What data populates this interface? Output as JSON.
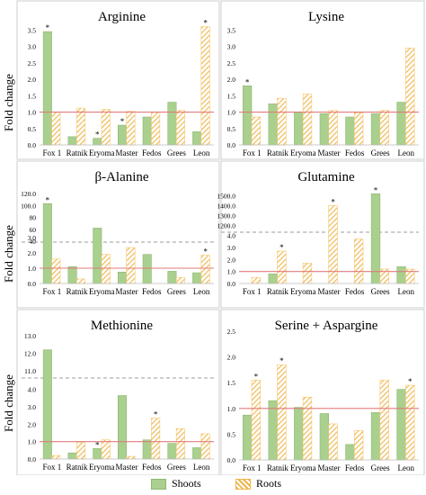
{
  "y_axis_label": "Fold change",
  "legend": [
    {
      "label": "Shoots",
      "color": "#a9d08e"
    },
    {
      "label": "Roots",
      "color": "#f6c56b"
    }
  ],
  "colors": {
    "shoots_fill": "#a9d08e",
    "shoots_stroke": "#8fb873",
    "roots_fill": "#f6c56b",
    "roots_hatch": "#f6c56b",
    "reference_line": "#e07b7b",
    "break_line": "#9e9e9e"
  },
  "chart_data": [
    {
      "type": "bar",
      "title": "Arginine",
      "categories": [
        "Fox 1",
        "Ratnik",
        "Eryoma",
        "Master",
        "Fedos",
        "Grees",
        "Leon"
      ],
      "series": [
        {
          "name": "Shoots",
          "values": [
            3.45,
            0.25,
            0.2,
            0.6,
            0.85,
            1.3,
            0.4
          ]
        },
        {
          "name": "Roots",
          "values": [
            1.0,
            1.12,
            1.08,
            1.02,
            1.0,
            1.05,
            3.6
          ]
        }
      ],
      "significance": {
        "Shoots": [
          0,
          2,
          3
        ],
        "Roots": [
          6
        ]
      },
      "yticks": [
        "0.0",
        "0.5",
        "1.0",
        "1.5",
        "2.0",
        "2.5",
        "3.0",
        "3.5"
      ],
      "ylim": [
        0,
        3.7
      ],
      "reference_line": 1.0
    },
    {
      "type": "bar",
      "title": "Lysine",
      "categories": [
        "Fox 1",
        "Ratnik",
        "Eryoma",
        "Master",
        "Fedos",
        "Grees",
        "Leon"
      ],
      "series": [
        {
          "name": "Shoots",
          "values": [
            1.8,
            1.25,
            1.0,
            0.95,
            0.85,
            0.95,
            1.3
          ]
        },
        {
          "name": "Roots",
          "values": [
            0.85,
            1.42,
            1.55,
            1.05,
            0.98,
            1.05,
            2.95
          ]
        }
      ],
      "significance": {
        "Shoots": [
          0
        ],
        "Roots": []
      },
      "yticks": [
        "0.0",
        "0.5",
        "1.0",
        "1.5",
        "2.0",
        "2.5",
        "3.0",
        "3.5"
      ],
      "ylim": [
        0,
        3.7
      ],
      "reference_line": 1.0
    },
    {
      "type": "bar",
      "title": "β-Alanine",
      "categories": [
        "Fox 1",
        "Ratnik",
        "Eryoma",
        "Master",
        "Fedos",
        "Grees",
        "Leon"
      ],
      "series": [
        {
          "name": "Shoots",
          "values": [
            103,
            1.1,
            62,
            0.75,
            1.9,
            0.8,
            0.7
          ]
        },
        {
          "name": "Roots",
          "values": [
            1.6,
            0.3,
            1.9,
            2.35,
            null,
            0.4,
            1.85
          ]
        }
      ],
      "significance": {
        "Shoots": [
          0
        ],
        "Roots": [
          6
        ]
      },
      "yticks": [
        "0.0",
        "1.0",
        "2.0",
        "3.0",
        "40",
        "60",
        "80",
        "100.0",
        "120.0"
      ],
      "axis_break": true,
      "reference_line": 1.0
    },
    {
      "type": "bar",
      "title": "Glutamine",
      "categories": [
        "Fox 1",
        "Ratnik",
        "Eryoma",
        "Master",
        "Fedos",
        "Grees",
        "Leon"
      ],
      "series": [
        {
          "name": "Shoots",
          "values": [
            null,
            0.8,
            null,
            null,
            null,
            1520,
            1.4
          ]
        },
        {
          "name": "Roots",
          "values": [
            0.5,
            2.7,
            1.7,
            1400,
            3.7,
            1.2,
            1.2
          ]
        }
      ],
      "significance": {
        "Shoots": [
          5
        ],
        "Roots": [
          1,
          3
        ]
      },
      "yticks": [
        "0.0",
        "1.0",
        "2.0",
        "3.0",
        "4.0",
        "1200.0",
        "1300.0",
        "1400.0",
        "1500.0"
      ],
      "axis_break": true,
      "reference_line": 1.0
    },
    {
      "type": "bar",
      "title": "Methionine",
      "categories": [
        "Fox 1",
        "Ratnik",
        "Eryoma",
        "Master",
        "Fedos",
        "Grees",
        "Leon"
      ],
      "series": [
        {
          "name": "Shoots",
          "values": [
            12.2,
            0.35,
            0.6,
            3.65,
            1.1,
            0.9,
            0.65
          ]
        },
        {
          "name": "Roots",
          "values": [
            0.2,
            0.95,
            1.1,
            0.15,
            2.35,
            1.75,
            1.45
          ]
        }
      ],
      "significance": {
        "Shoots": [
          2
        ],
        "Roots": [
          4
        ]
      },
      "yticks": [
        "0.0",
        "1.0",
        "2.0",
        "3.0",
        "4.0",
        "11.0",
        "12.0",
        "13.0"
      ],
      "axis_break": true,
      "reference_line": 1.0
    },
    {
      "type": "bar",
      "title": "Serine + Aspargine",
      "categories": [
        "Fox 1",
        "Ratnik",
        "Eryoma",
        "Master",
        "Fedos",
        "Grees",
        "Leon"
      ],
      "series": [
        {
          "name": "Shoots",
          "values": [
            0.87,
            1.15,
            1.02,
            0.9,
            0.3,
            0.92,
            1.37
          ]
        },
        {
          "name": "Roots",
          "values": [
            1.55,
            1.85,
            1.22,
            0.7,
            0.57,
            1.55,
            1.45
          ]
        }
      ],
      "significance": {
        "Shoots": [],
        "Roots": [
          0,
          1,
          6
        ]
      },
      "yticks": [
        "0.0",
        "0.5",
        "1.0",
        "1.5",
        "2.0",
        "2.5"
      ],
      "ylim": [
        0,
        2.5
      ],
      "reference_line": 1.0
    }
  ]
}
